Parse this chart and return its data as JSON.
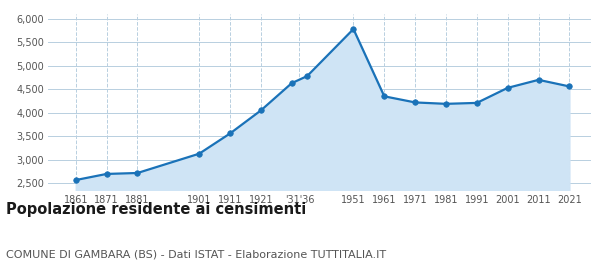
{
  "years": [
    1861,
    1871,
    1881,
    1901,
    1911,
    1921,
    1931,
    1936,
    1951,
    1961,
    1971,
    1981,
    1991,
    2001,
    2011,
    2021
  ],
  "population": [
    2570,
    2700,
    2720,
    3130,
    3560,
    4050,
    4630,
    4780,
    5780,
    4350,
    4220,
    4190,
    4210,
    4530,
    4700,
    4560
  ],
  "xlabels": [
    "1861",
    "1871",
    "1881",
    "1901",
    "1911",
    "1921",
    "'31'36",
    "1951",
    "1961",
    "1971",
    "1981",
    "1991",
    "2001",
    "2011",
    "2021"
  ],
  "xtick_positions": [
    1861,
    1871,
    1881,
    1901,
    1911,
    1921,
    1933.5,
    1951,
    1961,
    1971,
    1981,
    1991,
    2001,
    2011,
    2021
  ],
  "ylim": [
    2350,
    6100
  ],
  "yticks": [
    2500,
    3000,
    3500,
    4000,
    4500,
    5000,
    5500,
    6000
  ],
  "ytick_labels": [
    "2,500",
    "3,000",
    "3,500",
    "4,000",
    "4,500",
    "5,000",
    "5,500",
    "6,000"
  ],
  "line_color": "#1a72b8",
  "fill_color": "#cfe4f5",
  "marker_color": "#1a72b8",
  "grid_color": "#b8cfe0",
  "background_color": "#ffffff",
  "title": "Popolazione residente ai censimenti",
  "title_fontsize": 10.5,
  "subtitle": "COMUNE DI GAMBARA (BS) - Dati ISTAT - Elaborazione TUTTITALIA.IT",
  "subtitle_fontsize": 8.0,
  "xlim": [
    1852,
    2028
  ]
}
